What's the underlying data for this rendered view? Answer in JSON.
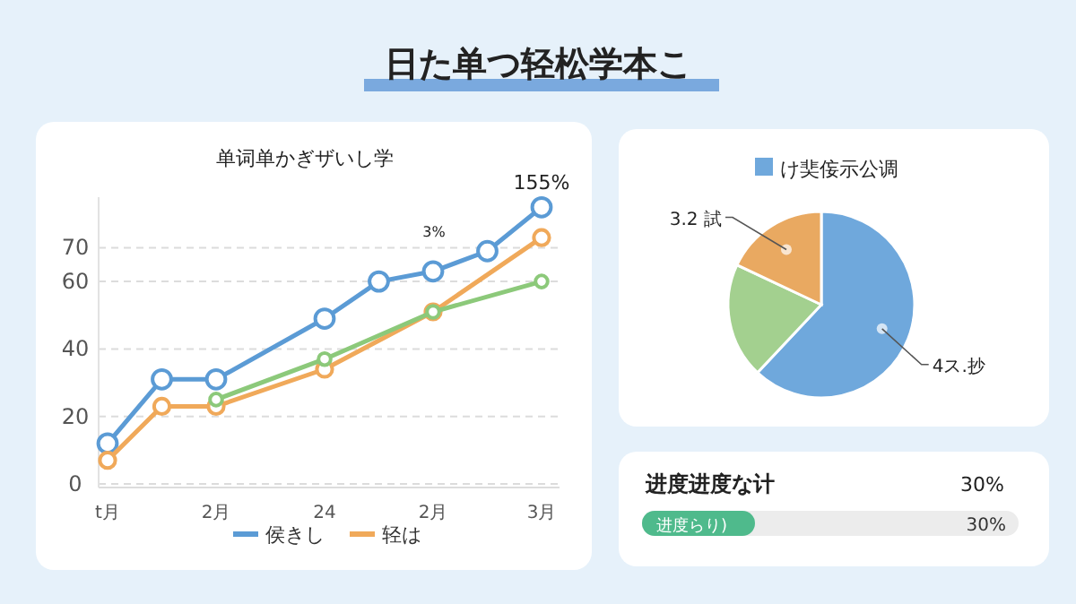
{
  "chart_data": [
    {
      "type": "other",
      "title": "日た单つ轻松学本こ"
    },
    {
      "type": "line",
      "title": "单词单かぎザいし学",
      "categories": [
        "t月",
        null,
        "2月",
        null,
        "24",
        null,
        "2月",
        null,
        "3月"
      ],
      "ylim": [
        0,
        85
      ],
      "yticks": [
        0,
        20,
        40,
        60,
        70
      ],
      "grid": "y",
      "marker": "circle",
      "legend": "bottom",
      "series": [
        {
          "name": "侯きし",
          "color": "#5b9bd5",
          "values": [
            12,
            31,
            31,
            null,
            49,
            60,
            63,
            69,
            82
          ]
        },
        {
          "name": "轻は",
          "color": "#f0a95a",
          "values": [
            7,
            23,
            23,
            null,
            34,
            null,
            51,
            null,
            73
          ]
        },
        {
          "color": "#8cc97a",
          "values": [
            null,
            null,
            25,
            null,
            37,
            null,
            51,
            null,
            60
          ]
        }
      ],
      "annotations": [
        {
          "text": "155%",
          "x": "3月",
          "y": 82
        },
        "3%"
      ]
    },
    {
      "type": "pie",
      "title": "け奜侫示公调",
      "categories": [
        "4ス.抄",
        null,
        "3.2 試"
      ],
      "values": [
        62,
        20,
        18
      ],
      "colors": [
        "#6fa8dc",
        "#a3d08f",
        "#e9a961"
      ]
    },
    {
      "type": "other",
      "title": "进度进度な计",
      "categories": [
        "进度らり)"
      ],
      "values": [
        30
      ],
      "value_labels": [
        "30%"
      ],
      "annotations": [
        "30%"
      ]
    }
  ]
}
